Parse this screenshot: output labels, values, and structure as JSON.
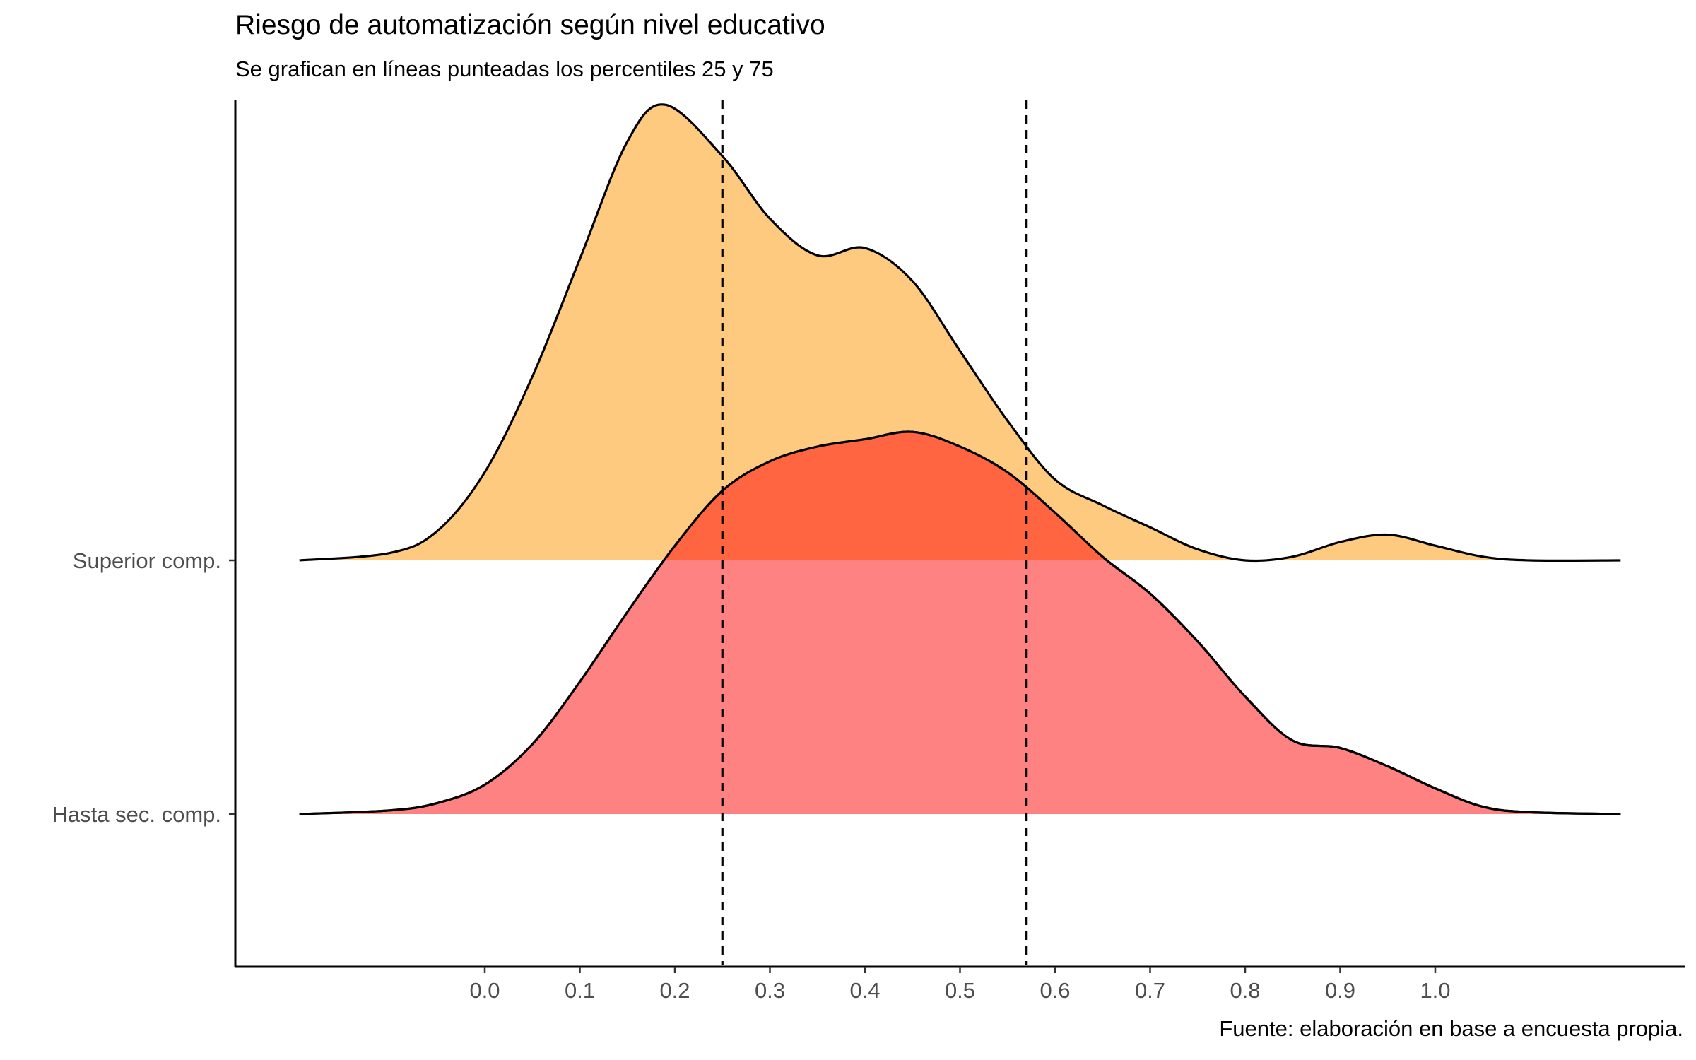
{
  "chart_data": {
    "type": "ridgeline",
    "title": "Riesgo de automatización según nivel educativo",
    "subtitle": "Se grafican en líneas punteadas los percentiles 25 y 75",
    "caption": "Fuente: elaboración en base a encuesta propia.",
    "x_ticks": [
      "0.0",
      "0.1",
      "0.2",
      "0.3",
      "0.4",
      "0.5",
      "0.6",
      "0.7",
      "0.8",
      "0.9",
      "1.0"
    ],
    "xlim": [
      -0.2,
      1.2
    ],
    "percentile_lines": [
      0.25,
      0.57
    ],
    "grid": false,
    "legend": "none",
    "series": [
      {
        "name": "Hasta sec. comp.",
        "color": "#ff7f7f",
        "x": [
          -0.195,
          -0.1,
          -0.05,
          0.0,
          0.05,
          0.1,
          0.15,
          0.2,
          0.25,
          0.3,
          0.35,
          0.4,
          0.45,
          0.5,
          0.55,
          0.6,
          0.65,
          0.7,
          0.75,
          0.8,
          0.85,
          0.9,
          0.95,
          1.0,
          1.05,
          1.1,
          1.195
        ],
        "y": [
          0.0,
          0.01,
          0.03,
          0.08,
          0.19,
          0.36,
          0.55,
          0.73,
          0.88,
          0.96,
          1.0,
          1.02,
          1.04,
          1.0,
          0.93,
          0.82,
          0.7,
          0.6,
          0.47,
          0.32,
          0.2,
          0.18,
          0.13,
          0.07,
          0.02,
          0.005,
          0.0
        ]
      },
      {
        "name": "Superior comp.",
        "color": "#fdca7f",
        "x": [
          -0.195,
          -0.1,
          -0.05,
          0.0,
          0.05,
          0.1,
          0.15,
          0.19,
          0.25,
          0.3,
          0.35,
          0.4,
          0.45,
          0.5,
          0.55,
          0.6,
          0.65,
          0.7,
          0.75,
          0.8,
          0.85,
          0.9,
          0.95,
          1.0,
          1.05,
          1.1,
          1.195
        ],
        "y": [
          0.0,
          0.02,
          0.08,
          0.24,
          0.5,
          0.82,
          1.14,
          1.24,
          1.1,
          0.93,
          0.83,
          0.85,
          0.76,
          0.57,
          0.38,
          0.22,
          0.15,
          0.09,
          0.03,
          0.0,
          0.01,
          0.05,
          0.07,
          0.04,
          0.01,
          0.0,
          0.0
        ]
      }
    ]
  }
}
